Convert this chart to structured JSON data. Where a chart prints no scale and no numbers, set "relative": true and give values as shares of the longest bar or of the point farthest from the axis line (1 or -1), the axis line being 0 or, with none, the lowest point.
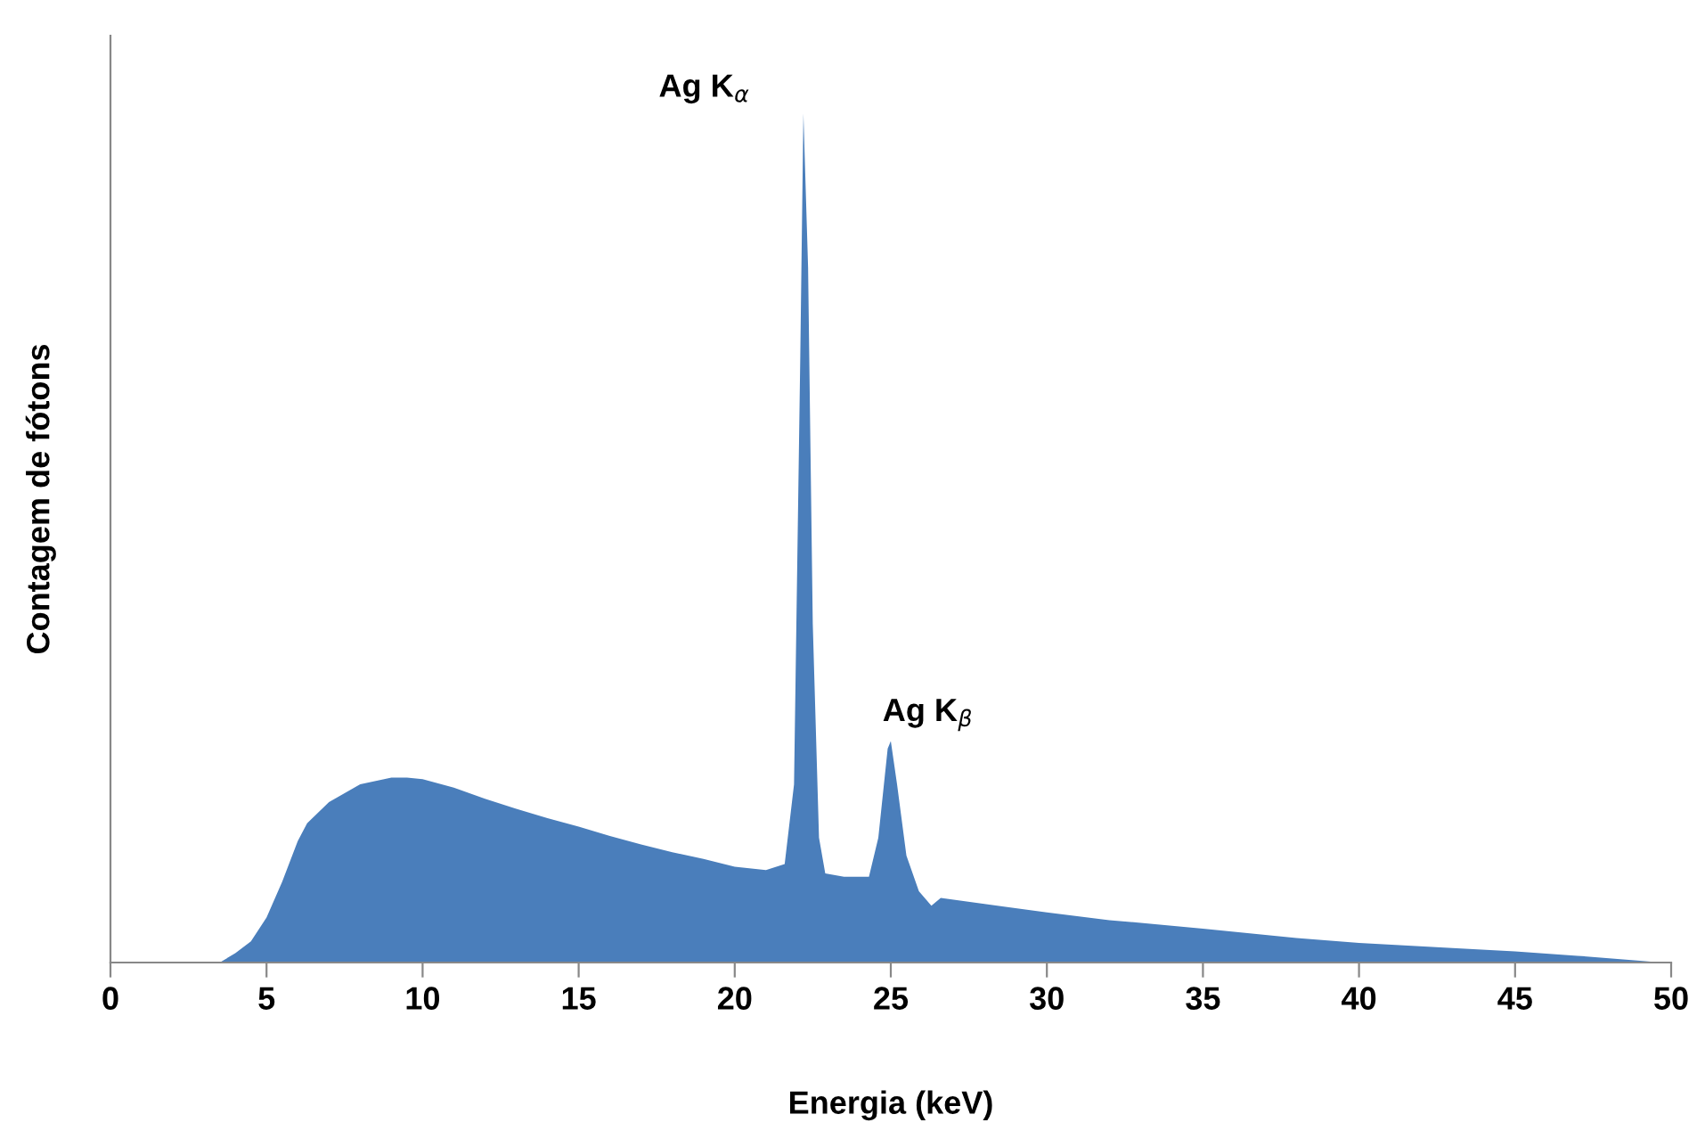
{
  "chart_data": {
    "type": "area",
    "relative": true,
    "xlabel": "Energia (keV)",
    "ylabel": "Contagem de fótons",
    "xlim": [
      0,
      50
    ],
    "xticks": [
      0,
      5,
      10,
      15,
      20,
      25,
      30,
      35,
      40,
      45,
      50
    ],
    "tick_labels": "x",
    "series": [
      {
        "color": "#4a7ebb",
        "x": [
          3.5,
          4.0,
          4.5,
          5.0,
          5.5,
          6.0,
          6.3,
          7,
          8,
          9,
          9.5,
          10,
          11,
          12,
          13,
          14,
          15,
          16,
          17,
          18,
          19,
          20,
          21,
          21.6,
          21.9,
          22.1,
          22.2,
          22.35,
          22.5,
          22.7,
          22.9,
          23.5,
          24.3,
          24.6,
          24.9,
          25.0,
          25.2,
          25.5,
          25.9,
          26.3,
          26.6,
          28,
          30,
          32,
          35,
          38,
          40,
          43,
          45,
          47,
          49,
          49.7
        ],
        "values": [
          0,
          0.011,
          0.025,
          0.053,
          0.095,
          0.143,
          0.164,
          0.189,
          0.21,
          0.218,
          0.218,
          0.216,
          0.206,
          0.193,
          0.181,
          0.17,
          0.16,
          0.149,
          0.139,
          0.13,
          0.122,
          0.113,
          0.109,
          0.116,
          0.21,
          0.714,
          1,
          0.819,
          0.399,
          0.147,
          0.105,
          0.101,
          0.101,
          0.147,
          0.252,
          0.261,
          0.21,
          0.126,
          0.084,
          0.067,
          0.076,
          0.069,
          0.059,
          0.05,
          0.04,
          0.029,
          0.023,
          0.017,
          0.013,
          0.008,
          0.002,
          0
        ]
      }
    ],
    "annotations": [
      {
        "text": "Ag K$_{α}$",
        "x": 22.2,
        "y": 1
      },
      {
        "text": "Ag K$_{β}$",
        "x": 25.0,
        "y": 0.261
      }
    ]
  }
}
